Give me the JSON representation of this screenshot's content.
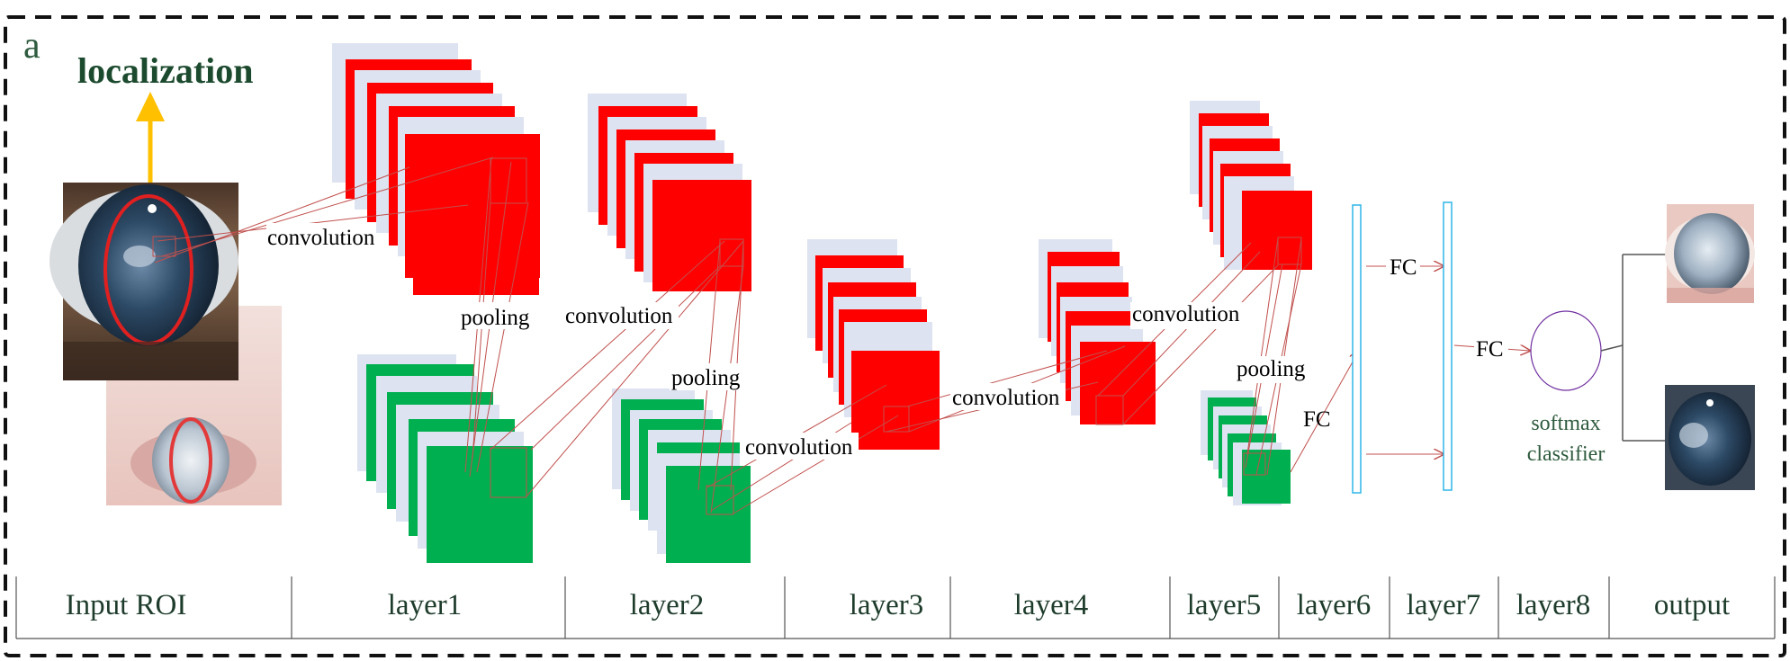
{
  "panel_letter": "a",
  "title": "localization",
  "operations": {
    "conv1": "convolution",
    "pool1": "pooling",
    "conv2": "convolution",
    "pool2": "pooling",
    "conv3": "convolution",
    "conv4": "convolution",
    "conv5": "convolution",
    "pool5": "pooling",
    "fc6": "FC",
    "fc7": "FC",
    "fc8": "FC"
  },
  "classifier": {
    "line1": "softmax",
    "line2": "classifier"
  },
  "layers": [
    "Input ROI",
    "layer1",
    "layer2",
    "layer3",
    "layer4",
    "layer5",
    "layer6",
    "layer7",
    "layer8",
    "output"
  ],
  "colors": {
    "conv_maps": "#ff0000",
    "pool_maps": "#00b050",
    "connections": "#c0504d",
    "arrow": "#ffc000",
    "fc_bar": "#2fb6e8",
    "classifier": "#7030a0",
    "label_text": "#1e3c2c"
  }
}
